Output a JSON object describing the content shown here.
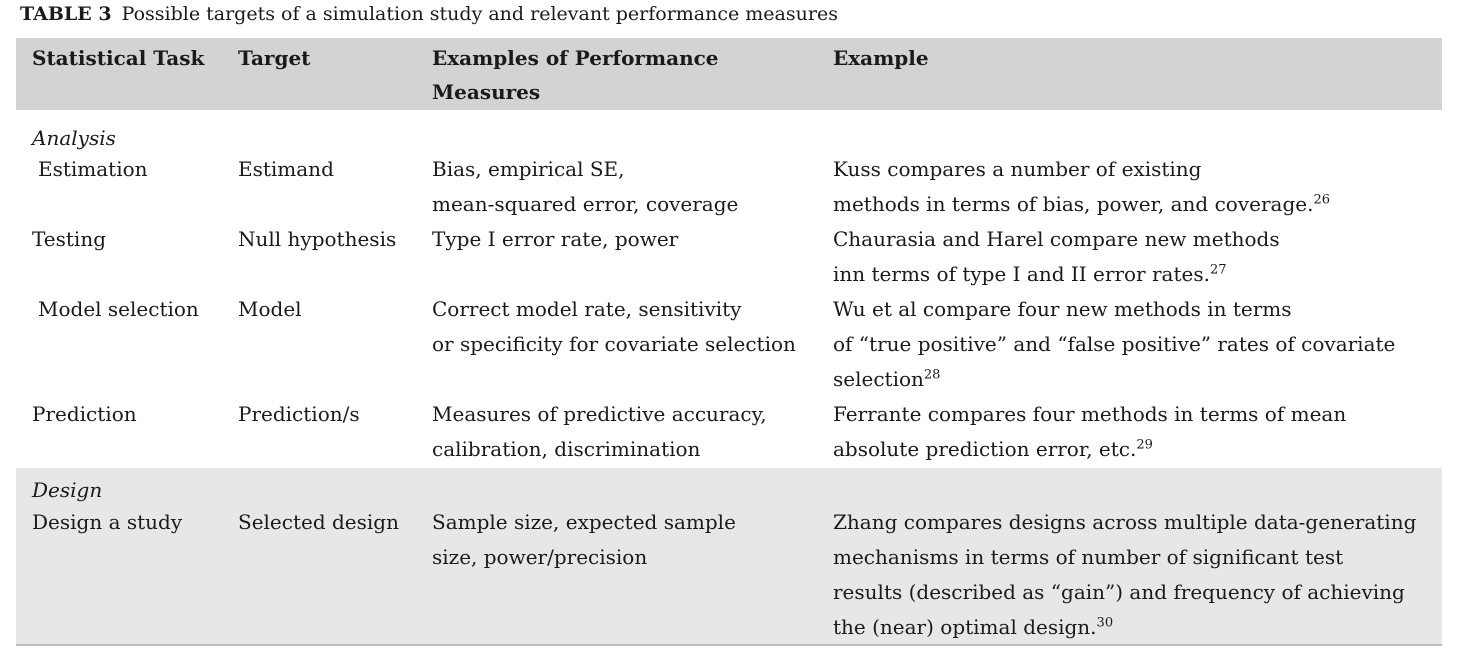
{
  "caption": {
    "label": "TABLE 3",
    "text": "Possible targets of a simulation study and relevant performance measures"
  },
  "header": [
    [
      "Statistical Task"
    ],
    [
      "Target"
    ],
    [
      "Examples of Performance",
      "Measures"
    ],
    [
      "Example"
    ]
  ],
  "sections": [
    {
      "label": "Analysis",
      "rows": [
        {
          "task": "Estimation",
          "target": "Estimand",
          "measures": [
            "Bias, empirical SE,",
            "mean-squared error, coverage"
          ],
          "example": [
            "Kuss compares a number of existing",
            "methods in terms of bias, power, and coverage."
          ],
          "ref": "26"
        },
        {
          "task": "Testing",
          "target": "Null hypothesis",
          "measures": [
            "Type I error rate, power"
          ],
          "example": [
            "Chaurasia and Harel compare new methods",
            "inn terms of type I and II error rates."
          ],
          "ref": "27"
        },
        {
          "task": "Model selection",
          "target": "Model",
          "measures": [
            "Correct model rate, sensitivity",
            "or specificity for covariate selection"
          ],
          "example": [
            "Wu et al compare four new methods in terms",
            "of “true positive” and “false positive” rates of covariate",
            "selection"
          ],
          "ref": "28"
        },
        {
          "task": "Prediction",
          "target": "Prediction/s",
          "measures": [
            "Measures of predictive accuracy,",
            "calibration, discrimination"
          ],
          "example": [
            "Ferrante compares four methods in terms of mean",
            "absolute prediction error, etc."
          ],
          "ref": "29"
        }
      ]
    },
    {
      "label": "Design",
      "rows": [
        {
          "task": "Design a study",
          "target": "Selected design",
          "measures": [
            "Sample size, expected sample",
            "size, power/precision"
          ],
          "example": [
            "Zhang compares designs across multiple data-generating",
            "mechanisms in terms of number of significant test",
            "results (described as “gain”) and frequency of achieving",
            "the (near) optimal design."
          ],
          "ref": "30"
        }
      ]
    }
  ]
}
